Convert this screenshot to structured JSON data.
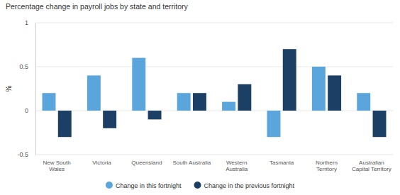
{
  "chart_data": {
    "type": "bar",
    "title": "Percentage change in payroll jobs by state and territory",
    "y_label": "%",
    "categories": [
      "New South Wales",
      "Victoria",
      "Queensland",
      "South Australia",
      "Western Australia",
      "Tasmania",
      "Northern Territory",
      "Australian Capital Territory"
    ],
    "series": [
      {
        "name": "Change in this fortnight",
        "color": "#5aa6dc",
        "values": [
          0.2,
          0.4,
          0.6,
          0.2,
          0.1,
          -0.3,
          0.5,
          0.2
        ]
      },
      {
        "name": "Change in the previous fortnight",
        "color": "#1c3f66",
        "values": [
          -0.3,
          -0.2,
          -0.1,
          0.2,
          0.3,
          0.7,
          0.4,
          -0.3
        ]
      }
    ],
    "ylim": [
      -0.5,
      1
    ],
    "yticks": [
      -0.5,
      0,
      0.5,
      1
    ],
    "grid": true,
    "legend": "bottom"
  }
}
